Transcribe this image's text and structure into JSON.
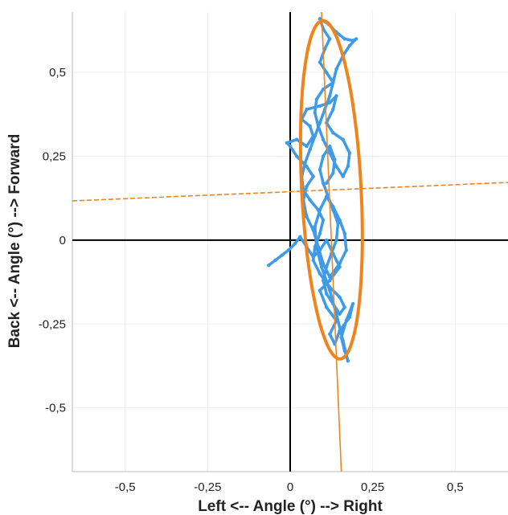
{
  "chart_data": {
    "type": "scatter",
    "xlabel": "Left <-- Angle (°) --> Right",
    "ylabel": "Back <-- Angle (°) --> Forward",
    "xlim": [
      -0.66,
      0.66
    ],
    "ylim": [
      -0.69,
      0.68
    ],
    "x_ticks": [
      {
        "value": -0.5,
        "label": "-0,5"
      },
      {
        "value": -0.25,
        "label": "-0,25"
      },
      {
        "value": 0,
        "label": "0"
      },
      {
        "value": 0.25,
        "label": "0,25"
      },
      {
        "value": 0.5,
        "label": "0,5"
      }
    ],
    "y_ticks": [
      {
        "value": 0.5,
        "label": "0,5"
      },
      {
        "value": 0.25,
        "label": "0,25"
      },
      {
        "value": 0,
        "label": "0"
      },
      {
        "value": -0.25,
        "label": "-0,25"
      },
      {
        "value": -0.5,
        "label": "-0,5"
      }
    ],
    "grid": true,
    "legend": "none",
    "colors": {
      "trajectory": "#3d9be9",
      "ellipse": "#f0841c",
      "axis_lines": "#000000",
      "grid": "#eeeeee"
    },
    "sway_path": [
      [
        -0.065,
        -0.075
      ],
      [
        -0.045,
        -0.06
      ],
      [
        -0.025,
        -0.045
      ],
      [
        -0.005,
        -0.03
      ],
      [
        0.015,
        -0.01
      ],
      [
        0.03,
        0.01
      ],
      [
        0.05,
        -0.02
      ],
      [
        0.07,
        -0.05
      ],
      [
        0.09,
        -0.03
      ],
      [
        0.11,
        0.0
      ],
      [
        0.13,
        -0.04
      ],
      [
        0.15,
        -0.08
      ],
      [
        0.12,
        -0.12
      ],
      [
        0.09,
        -0.15
      ],
      [
        0.11,
        -0.2
      ],
      [
        0.14,
        -0.24
      ],
      [
        0.12,
        -0.28
      ],
      [
        0.135,
        -0.31
      ],
      [
        0.15,
        -0.27
      ],
      [
        0.18,
        -0.23
      ],
      [
        0.19,
        -0.19
      ],
      [
        0.17,
        -0.24
      ],
      [
        0.155,
        -0.29
      ],
      [
        0.165,
        -0.33
      ],
      [
        0.175,
        -0.36
      ],
      [
        0.16,
        -0.3
      ],
      [
        0.14,
        -0.22
      ],
      [
        0.12,
        -0.15
      ],
      [
        0.095,
        -0.08
      ],
      [
        0.08,
        -0.02
      ],
      [
        0.075,
        0.04
      ],
      [
        0.09,
        0.09
      ],
      [
        0.11,
        0.13
      ],
      [
        0.13,
        0.1
      ],
      [
        0.15,
        0.06
      ],
      [
        0.165,
        0.02
      ],
      [
        0.17,
        -0.03
      ],
      [
        0.15,
        -0.07
      ],
      [
        0.12,
        -0.11
      ],
      [
        0.1,
        -0.07
      ],
      [
        0.085,
        -0.02
      ],
      [
        0.07,
        0.03
      ],
      [
        0.05,
        0.07
      ],
      [
        0.04,
        0.12
      ],
      [
        0.05,
        0.16
      ],
      [
        0.07,
        0.19
      ],
      [
        0.05,
        0.22
      ],
      [
        0.02,
        0.25
      ],
      [
        0.0,
        0.28
      ],
      [
        -0.01,
        0.29
      ],
      [
        0.02,
        0.3
      ],
      [
        0.05,
        0.28
      ],
      [
        0.07,
        0.31
      ],
      [
        0.06,
        0.34
      ],
      [
        0.035,
        0.36
      ],
      [
        0.05,
        0.39
      ],
      [
        0.09,
        0.4
      ],
      [
        0.12,
        0.41
      ],
      [
        0.14,
        0.43
      ],
      [
        0.13,
        0.39
      ],
      [
        0.11,
        0.35
      ],
      [
        0.13,
        0.32
      ],
      [
        0.16,
        0.3
      ],
      [
        0.18,
        0.26
      ],
      [
        0.175,
        0.22
      ],
      [
        0.16,
        0.19
      ],
      [
        0.14,
        0.22
      ],
      [
        0.12,
        0.26
      ],
      [
        0.1,
        0.3
      ],
      [
        0.085,
        0.34
      ],
      [
        0.075,
        0.38
      ],
      [
        0.08,
        0.42
      ],
      [
        0.1,
        0.45
      ],
      [
        0.13,
        0.47
      ],
      [
        0.11,
        0.5
      ],
      [
        0.09,
        0.53
      ],
      [
        0.105,
        0.57
      ],
      [
        0.12,
        0.6
      ],
      [
        0.1,
        0.63
      ],
      [
        0.09,
        0.66
      ],
      [
        0.115,
        0.645
      ],
      [
        0.14,
        0.62
      ],
      [
        0.165,
        0.6
      ],
      [
        0.19,
        0.595
      ],
      [
        0.2,
        0.6
      ],
      [
        0.18,
        0.58
      ],
      [
        0.16,
        0.55
      ],
      [
        0.14,
        0.51
      ],
      [
        0.13,
        0.47
      ],
      [
        0.12,
        0.43
      ],
      [
        0.105,
        0.39
      ],
      [
        0.09,
        0.35
      ],
      [
        0.075,
        0.31
      ],
      [
        0.06,
        0.27
      ],
      [
        0.045,
        0.23
      ],
      [
        0.035,
        0.19
      ],
      [
        0.04,
        0.15
      ],
      [
        0.06,
        0.12
      ],
      [
        0.085,
        0.09
      ],
      [
        0.1,
        0.06
      ],
      [
        0.09,
        0.02
      ],
      [
        0.075,
        -0.02
      ],
      [
        0.07,
        -0.06
      ],
      [
        0.09,
        -0.1
      ],
      [
        0.12,
        -0.14
      ],
      [
        0.15,
        -0.17
      ],
      [
        0.165,
        -0.2
      ],
      [
        0.15,
        -0.22
      ],
      [
        0.13,
        -0.19
      ],
      [
        0.11,
        -0.16
      ],
      [
        0.1,
        -0.12
      ],
      [
        0.11,
        -0.08
      ],
      [
        0.125,
        -0.04
      ],
      [
        0.14,
        0.0
      ],
      [
        0.145,
        0.05
      ],
      [
        0.13,
        0.09
      ],
      [
        0.115,
        0.13
      ],
      [
        0.1,
        0.17
      ],
      [
        0.09,
        0.21
      ],
      [
        0.1,
        0.25
      ],
      [
        0.12,
        0.28
      ],
      [
        0.135,
        0.24
      ],
      [
        0.13,
        0.2
      ],
      [
        0.11,
        0.17
      ]
    ],
    "ellipse": {
      "center": [
        0.125,
        0.15
      ],
      "semi_axis_major": 0.505,
      "semi_axis_minor": 0.09,
      "major_axis_angle_deg": 93
    },
    "principal_axes": [
      {
        "from": [
          -0.66,
          0.117
        ],
        "to": [
          0.66,
          0.172
        ],
        "style": "dashed"
      },
      {
        "from": [
          0.095,
          0.68
        ],
        "to": [
          0.155,
          -0.69
        ],
        "style": "solid"
      }
    ]
  }
}
